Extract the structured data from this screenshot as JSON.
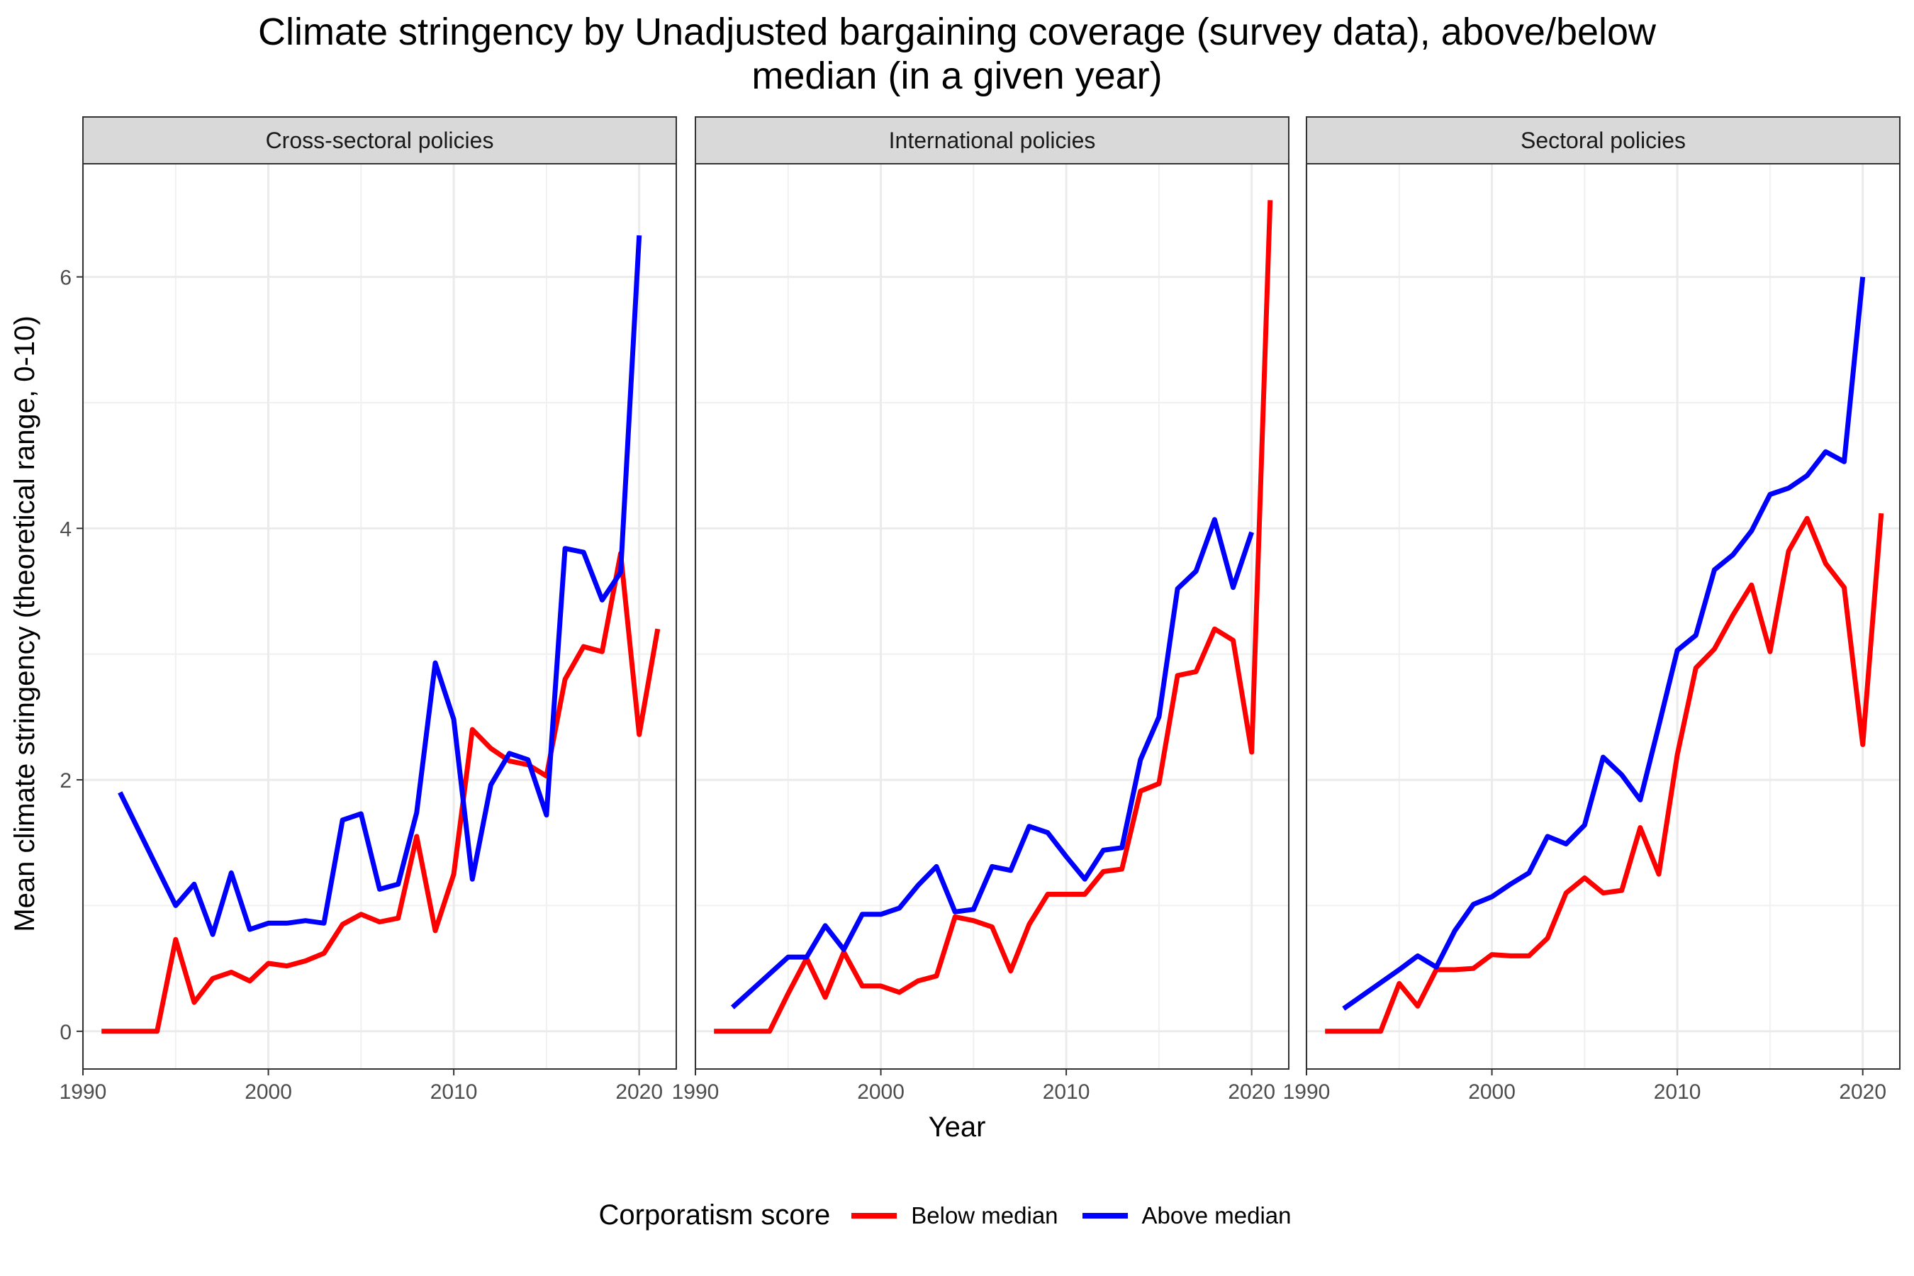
{
  "chart_data": {
    "type": "line",
    "title": "Climate stringency by Unadjusted bargaining coverage (survey data), above/below median (in a given year)",
    "title_lines": [
      "Climate stringency by Unadjusted bargaining coverage (survey data), above/below",
      "median (in a given year)"
    ],
    "xlabel": "Year",
    "ylabel": "Mean climate stringency (theoretical range, 0-10)",
    "xlim": [
      1990,
      2022
    ],
    "ylim": [
      -0.3,
      6.9
    ],
    "xticks": [
      1990,
      2000,
      2010,
      2020
    ],
    "yticks": [
      0,
      2,
      4,
      6
    ],
    "grid": true,
    "legend": {
      "title": "Corporatism score",
      "position": "bottom",
      "entries": [
        {
          "label": "Below median",
          "color": "#ff0000"
        },
        {
          "label": "Above median",
          "color": "#0000ff"
        }
      ]
    },
    "panels": [
      {
        "name": "Cross-sectoral policies",
        "series": [
          {
            "name": "Below median",
            "color": "#ff0000",
            "x": [
              1991,
              1992,
              1993,
              1994,
              1995,
              1996,
              1997,
              1998,
              1999,
              2000,
              2001,
              2002,
              2003,
              2004,
              2005,
              2006,
              2007,
              2008,
              2009,
              2010,
              2011,
              2012,
              2013,
              2014,
              2015,
              2016,
              2017,
              2018,
              2019,
              2020,
              2021
            ],
            "y": [
              0,
              0,
              0,
              0,
              0.73,
              0.23,
              0.42,
              0.47,
              0.4,
              0.54,
              0.52,
              0.56,
              0.62,
              0.85,
              0.93,
              0.87,
              0.9,
              1.55,
              0.8,
              1.25,
              2.4,
              2.25,
              2.15,
              2.12,
              2.03,
              2.8,
              3.06,
              3.02,
              3.8,
              2.36,
              3.2
            ]
          },
          {
            "name": "Above median",
            "color": "#0000ff",
            "x": [
              1992,
              1995,
              1996,
              1997,
              1998,
              1999,
              2000,
              2001,
              2002,
              2003,
              2004,
              2005,
              2006,
              2007,
              2008,
              2009,
              2010,
              2011,
              2012,
              2013,
              2014,
              2015,
              2016,
              2017,
              2018,
              2019,
              2020
            ],
            "y": [
              1.9,
              1.0,
              1.17,
              0.77,
              1.26,
              0.81,
              0.86,
              0.86,
              0.88,
              0.86,
              1.68,
              1.73,
              1.13,
              1.17,
              1.74,
              2.93,
              2.48,
              1.21,
              1.96,
              2.21,
              2.16,
              1.72,
              3.84,
              3.81,
              3.43,
              3.65,
              6.33
            ]
          }
        ]
      },
      {
        "name": "International policies",
        "series": [
          {
            "name": "Below median",
            "color": "#ff0000",
            "x": [
              1991,
              1992,
              1993,
              1994,
              1995,
              1996,
              1997,
              1998,
              1999,
              2000,
              2001,
              2002,
              2003,
              2004,
              2005,
              2006,
              2007,
              2008,
              2009,
              2010,
              2011,
              2012,
              2013,
              2014,
              2015,
              2016,
              2017,
              2018,
              2019,
              2020,
              2021
            ],
            "y": [
              0,
              0,
              0,
              0,
              0.3,
              0.58,
              0.27,
              0.63,
              0.36,
              0.36,
              0.31,
              0.4,
              0.44,
              0.91,
              0.88,
              0.83,
              0.48,
              0.85,
              1.09,
              1.09,
              1.09,
              1.27,
              1.29,
              1.91,
              1.97,
              2.83,
              2.86,
              3.2,
              3.11,
              2.22,
              6.61
            ]
          },
          {
            "name": "Above median",
            "color": "#0000ff",
            "x": [
              1992,
              1995,
              1996,
              1997,
              1998,
              1999,
              2000,
              2001,
              2002,
              2003,
              2004,
              2005,
              2006,
              2007,
              2008,
              2009,
              2010,
              2011,
              2012,
              2013,
              2014,
              2015,
              2016,
              2017,
              2018,
              2019,
              2020
            ],
            "y": [
              0.19,
              0.59,
              0.59,
              0.84,
              0.65,
              0.93,
              0.93,
              0.98,
              1.16,
              1.31,
              0.95,
              0.97,
              1.31,
              1.28,
              1.63,
              1.58,
              1.39,
              1.21,
              1.44,
              1.46,
              2.16,
              2.5,
              3.52,
              3.66,
              4.07,
              3.53,
              3.97
            ]
          }
        ]
      },
      {
        "name": "Sectoral policies",
        "series": [
          {
            "name": "Below median",
            "color": "#ff0000",
            "x": [
              1991,
              1992,
              1993,
              1994,
              1995,
              1996,
              1997,
              1998,
              1999,
              2000,
              2001,
              2002,
              2003,
              2004,
              2005,
              2006,
              2007,
              2008,
              2009,
              2010,
              2011,
              2012,
              2013,
              2014,
              2015,
              2016,
              2017,
              2018,
              2019,
              2020,
              2021
            ],
            "y": [
              0,
              0,
              0,
              0,
              0.38,
              0.2,
              0.49,
              0.49,
              0.5,
              0.61,
              0.6,
              0.6,
              0.74,
              1.1,
              1.22,
              1.1,
              1.12,
              1.62,
              1.25,
              2.2,
              2.89,
              3.04,
              3.31,
              3.55,
              3.02,
              3.82,
              4.08,
              3.72,
              3.53,
              2.28,
              4.12
            ]
          },
          {
            "name": "Above median",
            "color": "#0000ff",
            "x": [
              1992,
              1995,
              1996,
              1997,
              1998,
              1999,
              2000,
              2001,
              2002,
              2003,
              2004,
              2005,
              2006,
              2007,
              2008,
              2009,
              2010,
              2011,
              2012,
              2013,
              2014,
              2015,
              2016,
              2017,
              2018,
              2019,
              2020
            ],
            "y": [
              0.18,
              0.49,
              0.6,
              0.51,
              0.8,
              1.01,
              1.07,
              1.17,
              1.26,
              1.55,
              1.49,
              1.64,
              2.18,
              2.04,
              1.84,
              2.43,
              3.03,
              3.15,
              3.67,
              3.79,
              3.98,
              4.27,
              4.32,
              4.42,
              4.61,
              4.53,
              6.0
            ]
          }
        ]
      }
    ]
  }
}
